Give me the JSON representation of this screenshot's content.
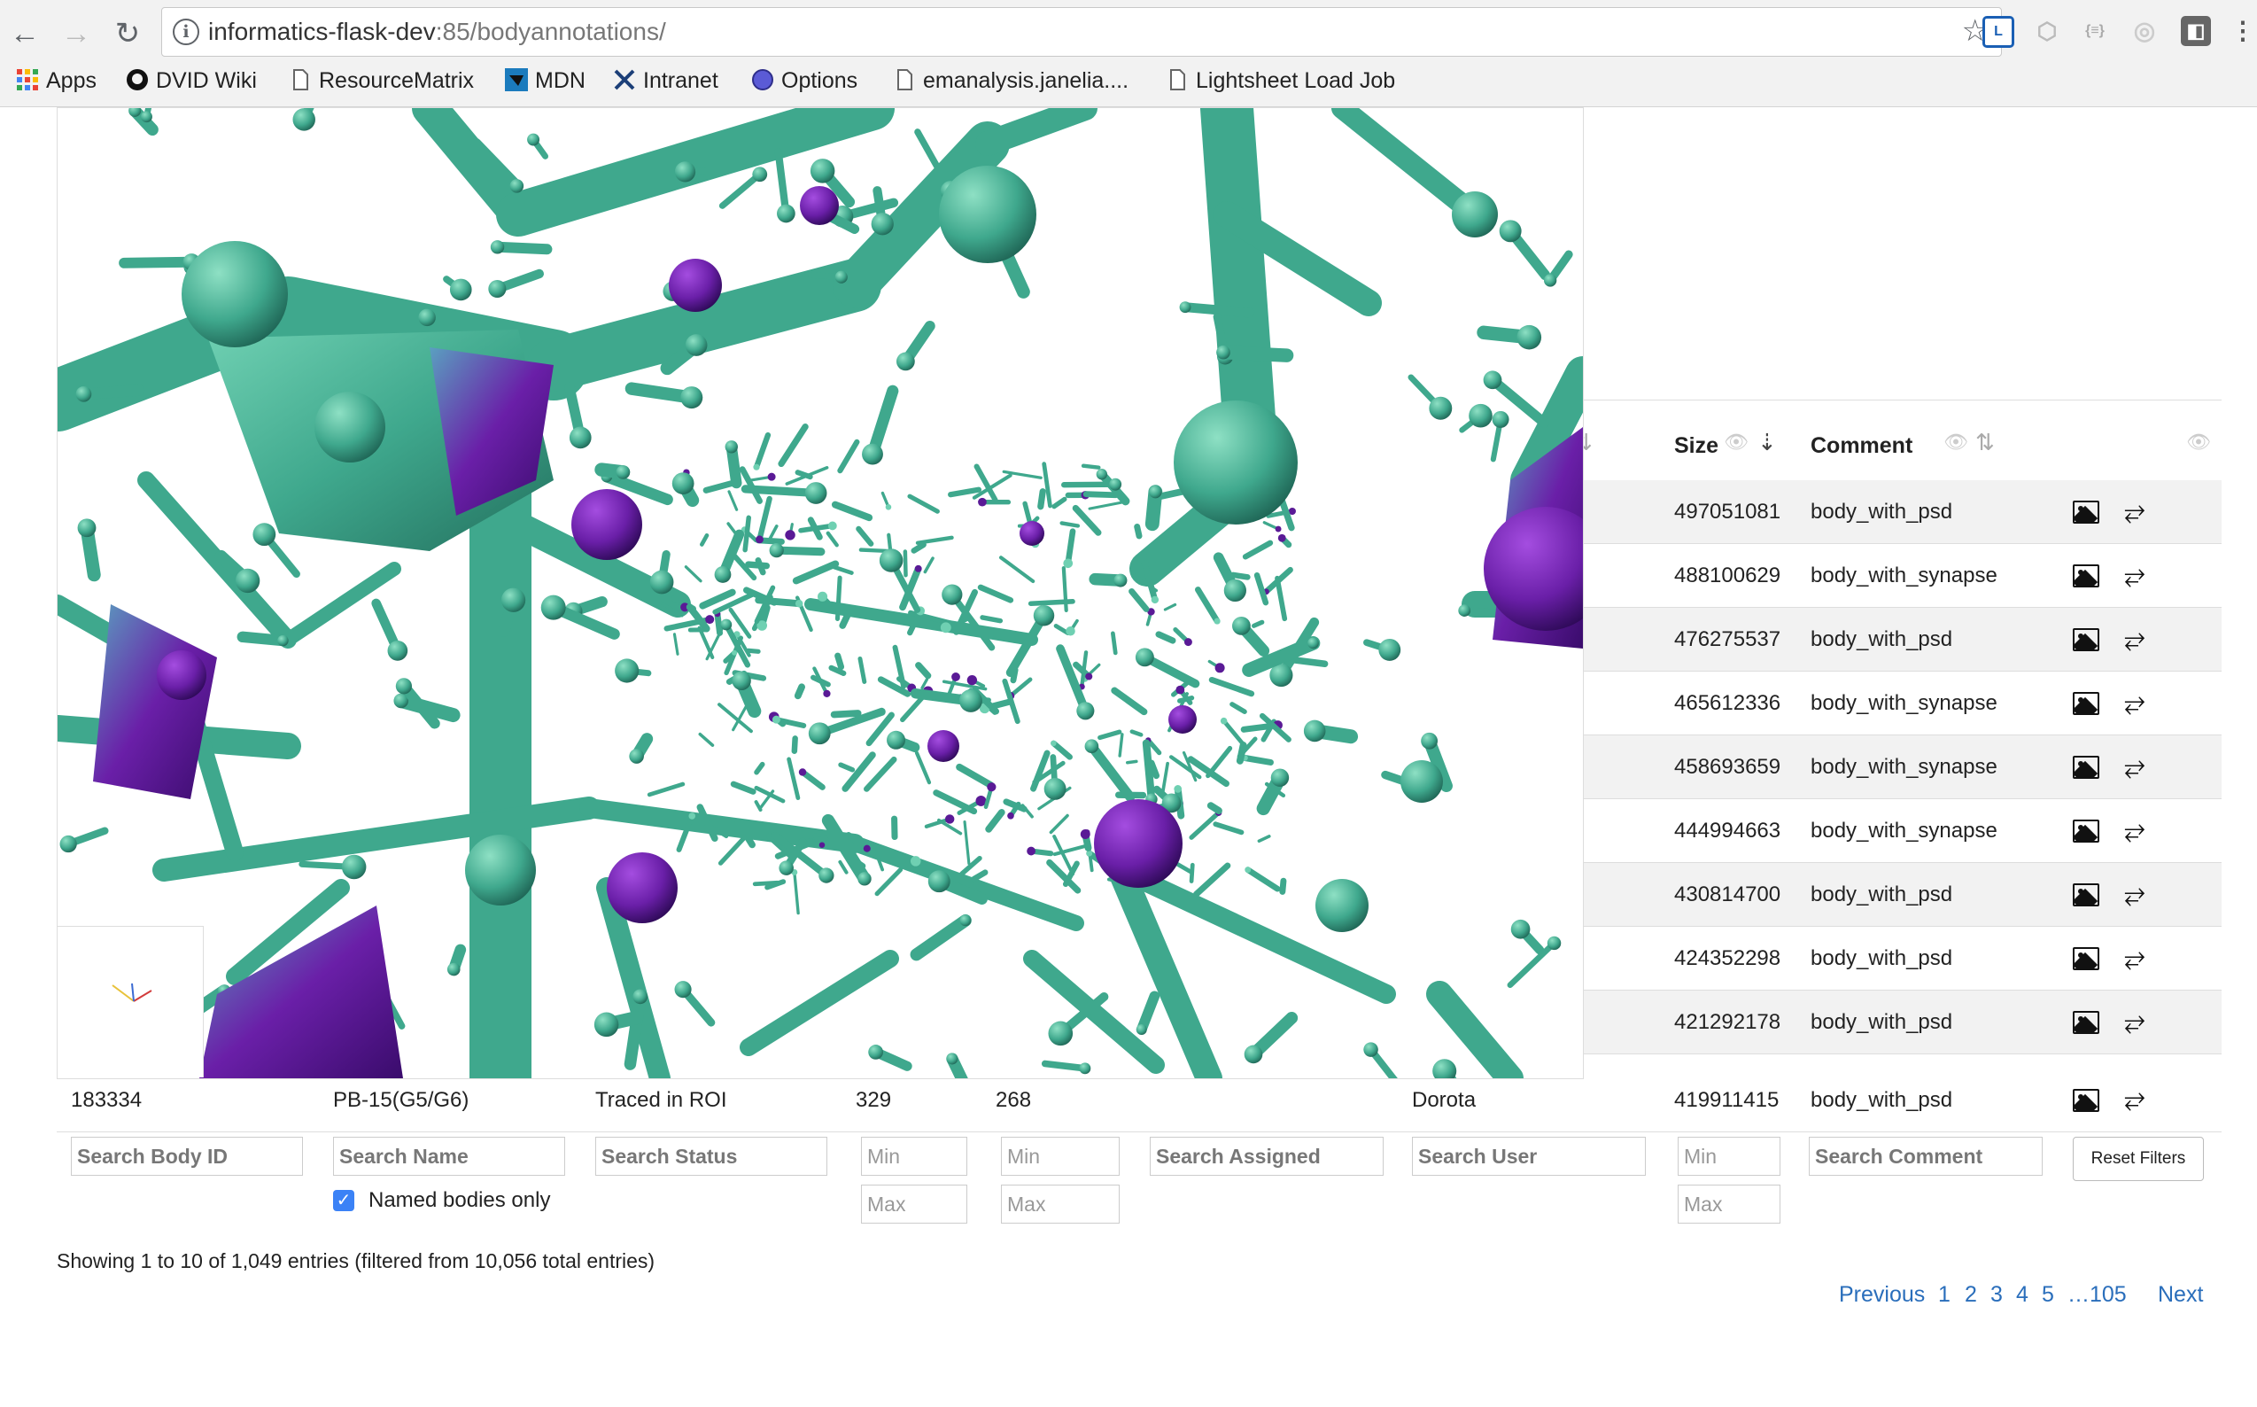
{
  "browser": {
    "url_host": "informatics-flask-dev",
    "url_rest": ":85/bodyannotations/",
    "bookmarks": [
      {
        "label": "Apps",
        "icon": "apps-grid-icon"
      },
      {
        "label": "DVID Wiki",
        "icon": "github-icon"
      },
      {
        "label": "ResourceMatrix",
        "icon": "page-icon"
      },
      {
        "label": "MDN",
        "icon": "mdn-icon"
      },
      {
        "label": "Intranet",
        "icon": "janelia-icon"
      },
      {
        "label": "Options",
        "icon": "globe-icon"
      },
      {
        "label": "emanalysis.janelia....",
        "icon": "page-icon"
      },
      {
        "label": "Lightsheet Load Job",
        "icon": "page-icon"
      }
    ],
    "extensions": [
      {
        "name": "lastpass-icon",
        "label": "L",
        "color": "#1a5fb4"
      },
      {
        "name": "hexagon-extension-icon",
        "label": "⬡",
        "color": "#bbbbbb"
      },
      {
        "name": "json-extension-icon",
        "label": "{≡}",
        "color": "#bbbbbb"
      },
      {
        "name": "target-extension-icon",
        "label": "◎",
        "color": "#bbbbbb"
      },
      {
        "name": "square-extension-icon",
        "label": "◧",
        "color": "#666666"
      }
    ]
  },
  "table": {
    "headers": {
      "size": "Size",
      "comment": "Comment"
    },
    "rows": [
      {
        "size": "497051081",
        "comment": "body_with_psd"
      },
      {
        "size": "488100629",
        "comment": "body_with_synapse"
      },
      {
        "size": "476275537",
        "comment": "body_with_psd"
      },
      {
        "size": "465612336",
        "comment": "body_with_synapse"
      },
      {
        "size": "458693659",
        "comment": "body_with_synapse"
      },
      {
        "size": "444994663",
        "comment": "body_with_synapse"
      },
      {
        "size": "430814700",
        "comment": "body_with_psd"
      },
      {
        "size": "424352298",
        "comment": "body_with_psd"
      },
      {
        "size": "421292178",
        "comment": "body_with_psd"
      }
    ],
    "last_row": {
      "body_id": "183334",
      "name": "PB-15(G5/G6)",
      "status": "Traced in ROI",
      "num1": "329",
      "num2": "268",
      "user": "Dorota",
      "size": "419911415",
      "comment": "body_with_psd"
    }
  },
  "filters": {
    "body_id": "Search Body ID",
    "name": "Search Name",
    "status": "Search Status",
    "min": "Min",
    "max": "Max",
    "assigned": "Search Assigned",
    "user": "Search User",
    "comment": "Search Comment",
    "reset": "Reset Filters",
    "named_only": "Named bodies only",
    "named_only_checked": true
  },
  "info": "Showing 1 to 10 of 1,049 entries (filtered from 10,056 total entries)",
  "pagination": {
    "previous": "Previous",
    "pages": [
      "1",
      "2",
      "3",
      "4",
      "5"
    ],
    "ellipsis_last": "…105",
    "next": "Next"
  },
  "viewer": {
    "colors": {
      "teal": "#3fa88d",
      "teal_dark": "#2a7f6b",
      "purple": "#6a1fa8",
      "purple_dark": "#3d0f72"
    }
  }
}
